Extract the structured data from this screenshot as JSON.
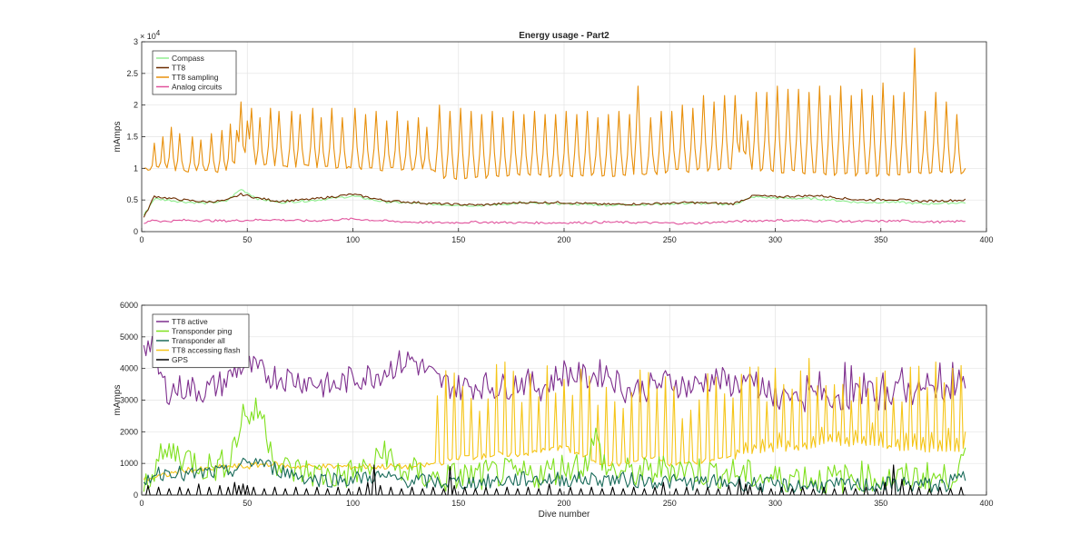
{
  "figure": {
    "background": "#ffffff"
  },
  "chart_data": [
    {
      "type": "line",
      "title": "Energy usage - Part2",
      "xlabel": "",
      "ylabel": "mAmps",
      "xlim": [
        0,
        400
      ],
      "ylim": [
        0,
        30000
      ],
      "xticks": [
        0,
        50,
        100,
        150,
        200,
        250,
        300,
        350,
        400
      ],
      "xtick_labels": [
        "0",
        "50",
        "100",
        "150",
        "200",
        "250",
        "300",
        "350",
        "400"
      ],
      "yticks": [
        0,
        5000,
        10000,
        15000,
        20000,
        25000,
        30000
      ],
      "ytick_labels": [
        "0",
        "0.5",
        "1",
        "1.5",
        "2",
        "2.5",
        "3"
      ],
      "y_exponent_label": "× 10",
      "y_exponent": "4",
      "grid": true,
      "legend_position": "top-left",
      "series": [
        {
          "name": "Compass",
          "color": "#90ee90",
          "x": [
            1,
            6,
            12,
            20,
            30,
            40,
            47,
            55,
            65,
            80,
            100,
            115,
            140,
            160,
            180,
            200,
            220,
            240,
            260,
            280,
            290,
            300,
            320,
            340,
            355,
            370,
            390
          ],
          "y": [
            2600,
            5200,
            5000,
            4700,
            4500,
            4800,
            6700,
            5200,
            4600,
            4900,
            5600,
            4700,
            4300,
            4100,
            4500,
            4400,
            4200,
            4300,
            4500,
            4300,
            5500,
            5300,
            5200,
            4600,
            4700,
            4400,
            4600
          ]
        },
        {
          "name": "TT8",
          "color": "#6b2c00",
          "x": [
            1,
            6,
            12,
            20,
            30,
            40,
            47,
            55,
            65,
            80,
            100,
            115,
            140,
            160,
            180,
            200,
            220,
            240,
            260,
            280,
            290,
            300,
            320,
            340,
            355,
            370,
            390
          ],
          "y": [
            2200,
            5600,
            5300,
            5000,
            4700,
            4900,
            5900,
            5300,
            4800,
            5100,
            5900,
            4900,
            4400,
            4200,
            4600,
            4600,
            4300,
            4400,
            4600,
            4400,
            5700,
            5500,
            5700,
            5000,
            5100,
            4800,
            5000
          ]
        },
        {
          "name": "TT8 sampling",
          "color": "#e8900c",
          "peaks": {
            "x": [
              6,
              10,
              14,
              18,
              24,
              28,
              33,
              38,
              42,
              45,
              47,
              50,
              52,
              56,
              61,
              65,
              71,
              75,
              81,
              85,
              90,
              95,
              101,
              106,
              111,
              116,
              121,
              126,
              131,
              135,
              141,
              146,
              151,
              156,
              161,
              166,
              171,
              176,
              181,
              186,
              191,
              196,
              201,
              206,
              211,
              216,
              221,
              226,
              231,
              235,
              241,
              246,
              251,
              256,
              261,
              266,
              271,
              276,
              281,
              284,
              287,
              291,
              296,
              301,
              306,
              311,
              316,
              321,
              326,
              331,
              336,
              341,
              346,
              351,
              356,
              361,
              366,
              371,
              376,
              381,
              386,
              390
            ],
            "y": [
              14000,
              15000,
              16500,
              15500,
              15000,
              14500,
              15500,
              16000,
              17000,
              16000,
              20500,
              17500,
              19500,
              18000,
              19500,
              19000,
              19000,
              18500,
              19500,
              18000,
              19500,
              18000,
              19500,
              18500,
              19000,
              17500,
              19000,
              17500,
              18000,
              16500,
              20000,
              19000,
              19500,
              19000,
              18500,
              19000,
              18000,
              19000,
              18500,
              19000,
              18500,
              18500,
              19000,
              18500,
              19000,
              18000,
              18500,
              19000,
              18500,
              23000,
              18000,
              19000,
              19000,
              20000,
              19500,
              21500,
              20500,
              21500,
              21500,
              18500,
              17500,
              22000,
              22000,
              23000,
              22500,
              22500,
              22000,
              23000,
              21500,
              23000,
              21500,
              22500,
              21500,
              23500,
              21500,
              22000,
              29000,
              19000,
              22000,
              20500,
              18500,
              10000
            ]
          },
          "baseline": {
            "x": [
              1,
              40,
              45,
              50,
              60,
              100,
              139,
              142,
              200,
              230,
              250,
              280,
              300,
              350,
              370,
              390
            ],
            "y": [
              10000,
              9500,
              8000,
              11000,
              10500,
              10000,
              9800,
              8500,
              9000,
              9000,
              9500,
              10000,
              9500,
              9000,
              9500,
              9300
            ]
          }
        },
        {
          "name": "Analog circuits",
          "color": "#e0529c",
          "x": [
            1,
            5,
            10,
            20,
            40,
            60,
            80,
            100,
            120,
            140,
            160,
            180,
            200,
            220,
            240,
            260,
            280,
            300,
            320,
            340,
            360,
            380,
            390
          ],
          "y": [
            1200,
            1900,
            1600,
            1800,
            1700,
            1900,
            1700,
            2000,
            1600,
            1400,
            1500,
            1400,
            1400,
            1500,
            1400,
            1300,
            1600,
            1800,
            1700,
            1600,
            1700,
            1500,
            1700
          ]
        }
      ]
    },
    {
      "type": "line",
      "title": "",
      "xlabel": "Dive number",
      "ylabel": "mAmps",
      "xlim": [
        0,
        400
      ],
      "ylim": [
        0,
        6000
      ],
      "xticks": [
        0,
        50,
        100,
        150,
        200,
        250,
        300,
        350,
        400
      ],
      "xtick_labels": [
        "0",
        "50",
        "100",
        "150",
        "200",
        "250",
        "300",
        "350",
        "400"
      ],
      "yticks": [
        0,
        1000,
        2000,
        3000,
        4000,
        5000,
        6000
      ],
      "ytick_labels": [
        "0",
        "1000",
        "2000",
        "3000",
        "4000",
        "5000",
        "6000"
      ],
      "grid": true,
      "legend_position": "top-left",
      "series": [
        {
          "name": "TT8 active",
          "color": "#7e2f8e",
          "x": [
            1,
            3,
            5,
            8,
            12,
            20,
            30,
            40,
            45,
            50,
            55,
            60,
            70,
            80,
            90,
            100,
            110,
            120,
            128,
            135,
            140,
            150,
            160,
            170,
            180,
            190,
            200,
            210,
            220,
            230,
            240,
            250,
            260,
            270,
            280,
            285,
            290,
            300,
            310,
            320,
            330,
            340,
            350,
            360,
            370,
            380,
            390
          ],
          "y": [
            4900,
            4700,
            4900,
            3900,
            3300,
            3400,
            3300,
            3600,
            4000,
            4100,
            3900,
            3800,
            3700,
            3600,
            3400,
            3700,
            3800,
            4100,
            4300,
            3900,
            3600,
            3400,
            3500,
            3400,
            3600,
            3400,
            3900,
            3700,
            3900,
            3300,
            3400,
            3600,
            3400,
            3700,
            3500,
            3600,
            3300,
            2900,
            3100,
            3000,
            3100,
            3200,
            3100,
            3300,
            3200,
            3400,
            3400
          ],
          "spread": 450
        },
        {
          "name": "Transponder ping",
          "color": "#7fe01e",
          "x": [
            1,
            5,
            10,
            15,
            20,
            25,
            30,
            35,
            40,
            45,
            48,
            52,
            56,
            60,
            65,
            70,
            80,
            90,
            100,
            110,
            115,
            120,
            130,
            140,
            150,
            160,
            170,
            180,
            190,
            200,
            210,
            215,
            220,
            230,
            240,
            250,
            260,
            270,
            280,
            290,
            300,
            310,
            320,
            330,
            340,
            350,
            360,
            370,
            380,
            390
          ],
          "y": [
            300,
            800,
            1200,
            1400,
            1200,
            1100,
            900,
            900,
            1000,
            1800,
            2600,
            2500,
            2700,
            1800,
            900,
            800,
            700,
            600,
            700,
            900,
            1500,
            800,
            700,
            500,
            600,
            600,
            700,
            600,
            700,
            900,
            1000,
            1800,
            800,
            700,
            700,
            900,
            800,
            700,
            700,
            600,
            500,
            600,
            500,
            500,
            600,
            500,
            500,
            600,
            500,
            1000
          ],
          "spread": 500
        },
        {
          "name": "Transponder all",
          "color": "#1a6b5a",
          "x": [
            1,
            5,
            10,
            15,
            20,
            30,
            40,
            50,
            55,
            60,
            70,
            80,
            90,
            100,
            110,
            120,
            140,
            160,
            180,
            200,
            220,
            240,
            260,
            280,
            290,
            300,
            320,
            340,
            360,
            380,
            390
          ],
          "y": [
            300,
            700,
            700,
            800,
            600,
            700,
            700,
            1000,
            1100,
            900,
            700,
            500,
            500,
            500,
            600,
            500,
            400,
            400,
            500,
            500,
            500,
            450,
            400,
            400,
            350,
            300,
            300,
            300,
            350,
            300,
            600
          ],
          "spread": 250
        },
        {
          "name": "TT8 accessing flash",
          "color": "#f5c518",
          "x": [
            1,
            10,
            20,
            30,
            40,
            50,
            60,
            70,
            80,
            90,
            100,
            110,
            120,
            130,
            140,
            150,
            160,
            170,
            180,
            190,
            200,
            210,
            220,
            230,
            240,
            250,
            260,
            270,
            280,
            290,
            300,
            310,
            320,
            330,
            340,
            350,
            360,
            370,
            380,
            390
          ],
          "y": [
            500,
            600,
            800,
            800,
            900,
            900,
            1000,
            900,
            900,
            900,
            900,
            900,
            900,
            900,
            1000,
            1200,
            1200,
            1300,
            1300,
            1400,
            1500,
            1200,
            1000,
            1000,
            1200,
            1000,
            1000,
            1100,
            1200,
            1400,
            1400,
            1500,
            1600,
            1600,
            1600,
            1500,
            1500,
            1400,
            1400,
            1400
          ],
          "peak_start": 140,
          "peak_height": 2400
        },
        {
          "name": "GPS",
          "color": "#000000",
          "x": [
            3,
            8,
            13,
            18,
            22,
            27,
            32,
            37,
            41,
            44,
            46,
            48,
            50,
            53,
            58,
            63,
            68,
            73,
            78,
            83,
            88,
            93,
            98,
            103,
            107,
            110,
            113,
            118,
            123,
            128,
            133,
            138,
            143,
            146,
            148,
            153,
            158,
            163,
            168,
            173,
            178,
            183,
            188,
            193,
            198,
            203,
            208,
            213,
            218,
            223,
            228,
            233,
            238,
            243,
            247,
            253,
            258,
            263,
            268,
            273,
            278,
            283,
            286,
            288,
            293,
            298,
            303,
            308,
            313,
            318,
            323,
            328,
            333,
            338,
            343,
            348,
            352,
            356,
            360,
            364,
            368,
            373,
            378,
            383,
            388
          ],
          "y": [
            300,
            250,
            200,
            250,
            200,
            350,
            250,
            300,
            250,
            400,
            300,
            350,
            300,
            250,
            200,
            250,
            200,
            250,
            200,
            250,
            200,
            250,
            200,
            250,
            400,
            950,
            300,
            250,
            200,
            250,
            200,
            250,
            200,
            900,
            300,
            250,
            200,
            250,
            200,
            250,
            200,
            250,
            200,
            350,
            200,
            250,
            200,
            250,
            200,
            250,
            200,
            250,
            200,
            250,
            400,
            200,
            250,
            200,
            250,
            200,
            300,
            500,
            350,
            300,
            250,
            200,
            250,
            200,
            250,
            200,
            250,
            200,
            250,
            200,
            250,
            200,
            400,
            950,
            500,
            300,
            250,
            200,
            250,
            200,
            250
          ]
        }
      ]
    }
  ]
}
